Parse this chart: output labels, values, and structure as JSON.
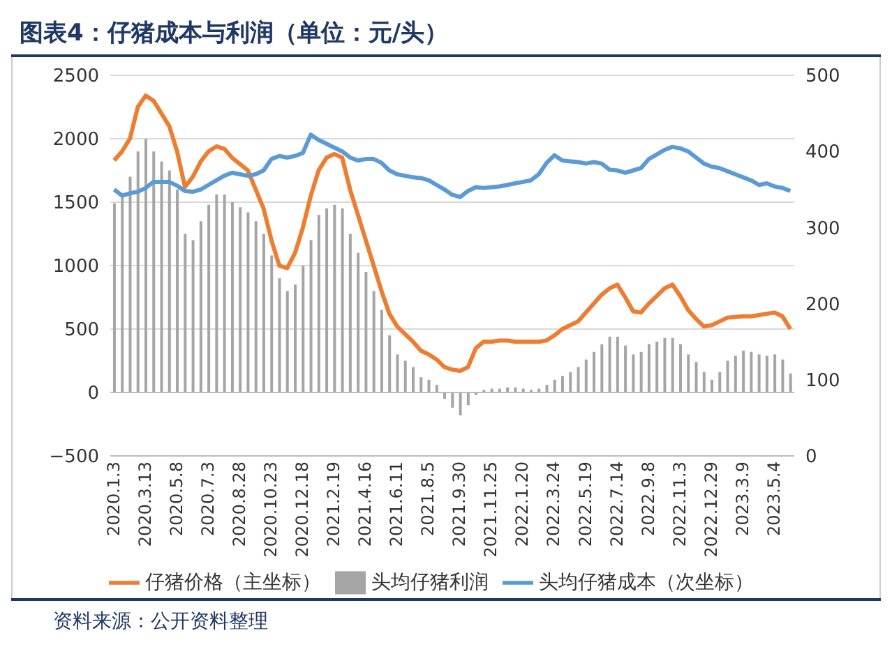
{
  "chart_data": {
    "type": "bar",
    "title": "图表4：仔猪成本与利润（单位：元/头）",
    "categories": [
      "2020.1.3",
      null,
      null,
      null,
      "2020.3.13",
      null,
      null,
      null,
      "2020.5.8",
      null,
      null,
      null,
      "2020.7.3",
      null,
      null,
      null,
      "2020.8.28",
      null,
      null,
      null,
      "2020.10.23",
      null,
      null,
      null,
      "2020.12.18",
      null,
      null,
      null,
      "2021.2.19",
      null,
      null,
      null,
      "2021.4.16",
      null,
      null,
      null,
      "2021.6.11",
      null,
      null,
      null,
      "2021.8.5",
      null,
      null,
      null,
      "2021.9.30",
      null,
      null,
      null,
      "2021.11.25",
      null,
      null,
      null,
      "2022.1.20",
      null,
      null,
      null,
      "2022.3.24",
      null,
      null,
      null,
      "2022.5.19",
      null,
      null,
      null,
      "2022.7.14",
      null,
      null,
      null,
      "2022.9.8",
      null,
      null,
      null,
      "2022.11.3",
      null,
      null,
      null,
      "2022.12.29",
      null,
      null,
      null,
      "2023.3.9",
      null,
      null,
      null,
      "2023.5.4",
      null,
      null
    ],
    "series": [
      {
        "name": "头均仔猪利润",
        "color": "#a5a5a5",
        "values": [
          1490,
          1550,
          1700,
          1900,
          2000,
          1900,
          1820,
          1750,
          1600,
          1250,
          1200,
          1350,
          1480,
          1560,
          1560,
          1500,
          1460,
          1420,
          1350,
          1250,
          1080,
          900,
          800,
          850,
          1000,
          1200,
          1400,
          1450,
          1480,
          1450,
          1250,
          1100,
          950,
          800,
          650,
          450,
          300,
          250,
          200,
          120,
          100,
          60,
          -50,
          -120,
          -180,
          -100,
          -20,
          20,
          30,
          30,
          40,
          40,
          30,
          20,
          30,
          60,
          100,
          130,
          160,
          200,
          260,
          320,
          380,
          440,
          440,
          370,
          300,
          320,
          380,
          400,
          430,
          430,
          380,
          300,
          240,
          160,
          100,
          160,
          250,
          290,
          330,
          320,
          300,
          290,
          300,
          260,
          150
        ]
      },
      {
        "name": "仔猪价格（主坐标）",
        "type": "line",
        "color": "#ed7d31",
        "values": [
          1830,
          1900,
          2000,
          2250,
          2340,
          2300,
          2200,
          2100,
          1900,
          1620,
          1700,
          1820,
          1900,
          1940,
          1920,
          1850,
          1800,
          1750,
          1600,
          1450,
          1200,
          1000,
          980,
          1100,
          1300,
          1550,
          1750,
          1850,
          1880,
          1850,
          1600,
          1400,
          1200,
          1000,
          800,
          620,
          520,
          460,
          400,
          330,
          300,
          260,
          200,
          180,
          170,
          200,
          350,
          400,
          400,
          410,
          410,
          400,
          400,
          400,
          400,
          410,
          450,
          500,
          530,
          560,
          630,
          700,
          770,
          820,
          850,
          750,
          640,
          630,
          700,
          760,
          820,
          850,
          760,
          650,
          580,
          520,
          530,
          560,
          590,
          595,
          600,
          600,
          610,
          620,
          630,
          600,
          500
        ]
      },
      {
        "name": "头均仔猪成本（次坐标）",
        "type": "line",
        "axis": "y2",
        "color": "#5b9bd5",
        "values": [
          350,
          342,
          345,
          347,
          352,
          360,
          360,
          360,
          355,
          348,
          347,
          350,
          356,
          362,
          368,
          372,
          370,
          368,
          370,
          375,
          390,
          394,
          392,
          394,
          398,
          422,
          415,
          410,
          405,
          400,
          392,
          388,
          390,
          390,
          385,
          375,
          370,
          368,
          366,
          365,
          362,
          356,
          350,
          343,
          340,
          348,
          353,
          352,
          353,
          354,
          356,
          358,
          360,
          362,
          370,
          385,
          395,
          388,
          387,
          386,
          384,
          386,
          384,
          376,
          375,
          372,
          375,
          378,
          390,
          396,
          402,
          406,
          404,
          400,
          392,
          384,
          380,
          378,
          374,
          370,
          366,
          362,
          356,
          358,
          354,
          352,
          348
        ]
      }
    ],
    "ylim": [
      -500,
      2500
    ],
    "yticks": [
      {
        "value": -500,
        "label": "−500"
      },
      0,
      500,
      1000,
      1500,
      2000,
      2500
    ],
    "y2lim": [
      0,
      500
    ],
    "y2ticks": [
      0,
      100,
      200,
      300,
      400,
      500
    ],
    "grid": "y",
    "legend": "bottom",
    "marker": "none",
    "annotations": [
      "资料来源：公开资料整理"
    ]
  }
}
